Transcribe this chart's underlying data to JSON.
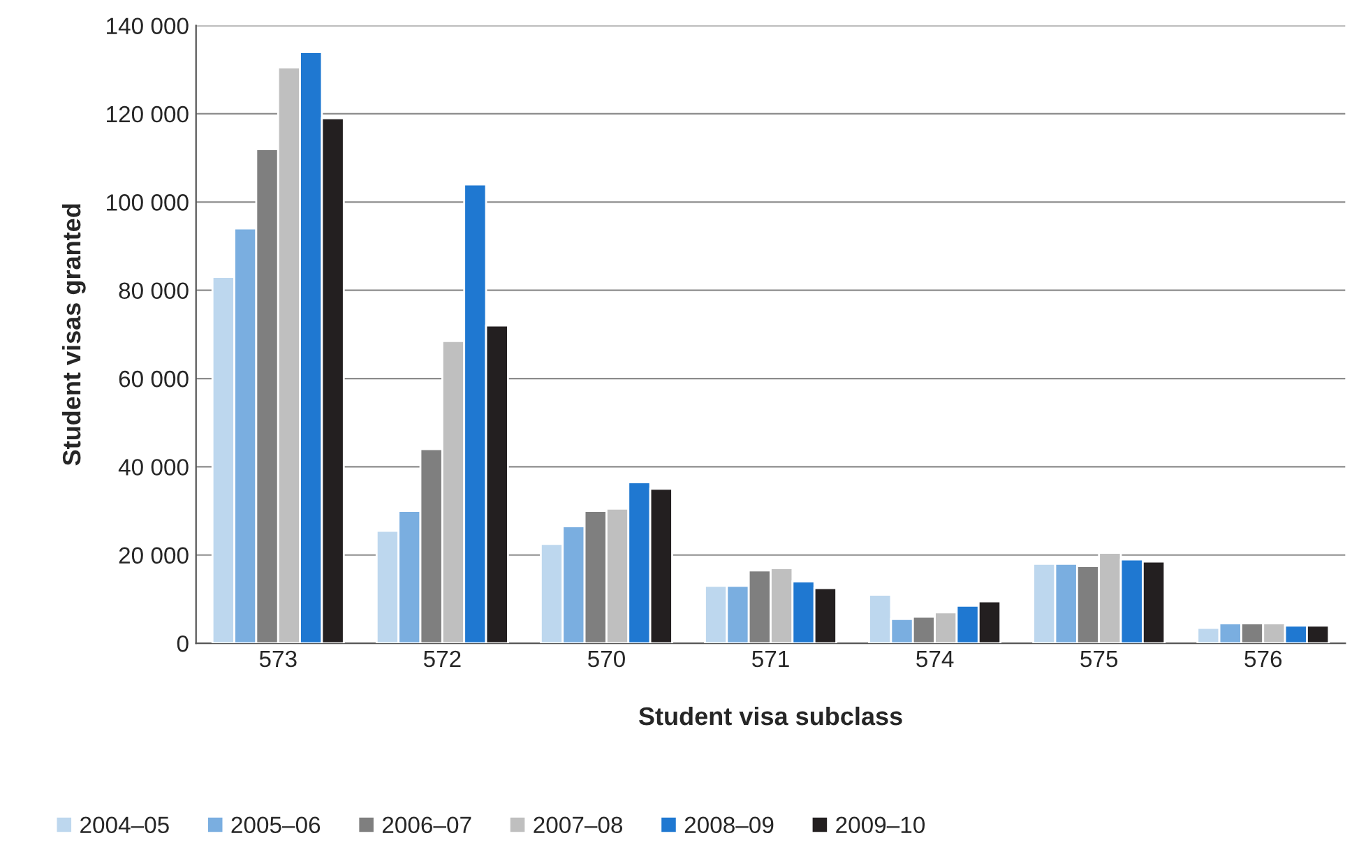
{
  "chart_data": {
    "type": "bar",
    "xlabel": "Student visa subclass",
    "ylabel": "Student visas granted",
    "categories": [
      "573",
      "572",
      "570",
      "571",
      "574",
      "575",
      "576"
    ],
    "series": [
      {
        "name": "2004–05",
        "color": "#bdd7ee",
        "values": [
          83000,
          25500,
          22500,
          13000,
          11000,
          18000,
          3500
        ]
      },
      {
        "name": "2005–06",
        "color": "#7aaee0",
        "values": [
          94000,
          30000,
          26500,
          13000,
          5500,
          18000,
          4500
        ]
      },
      {
        "name": "2006–07",
        "color": "#7f7f7f",
        "values": [
          112000,
          44000,
          30000,
          16500,
          6000,
          17500,
          4500
        ]
      },
      {
        "name": "2007–08",
        "color": "#bfbfbf",
        "values": [
          130500,
          68500,
          30500,
          17000,
          7000,
          20500,
          4500
        ]
      },
      {
        "name": "2008–09",
        "color": "#1f78d1",
        "values": [
          134000,
          104000,
          36500,
          14000,
          8500,
          19000,
          4000
        ]
      },
      {
        "name": "2009–10",
        "color": "#231f20",
        "values": [
          119000,
          72000,
          35000,
          12500,
          9500,
          18500,
          4000
        ]
      }
    ],
    "ylim": [
      0,
      140000
    ],
    "yticks": [
      0,
      {
        "value": 20000,
        "label": "20 000"
      },
      {
        "value": 40000,
        "label": "40 000"
      },
      {
        "value": 60000,
        "label": "60 000"
      },
      {
        "value": 80000,
        "label": "80 000"
      },
      {
        "value": 100000,
        "label": "100 000"
      },
      {
        "value": 120000,
        "label": "120 000"
      },
      {
        "value": 140000,
        "label": "140 000"
      }
    ],
    "grid": "y",
    "legend": "bottom left"
  }
}
